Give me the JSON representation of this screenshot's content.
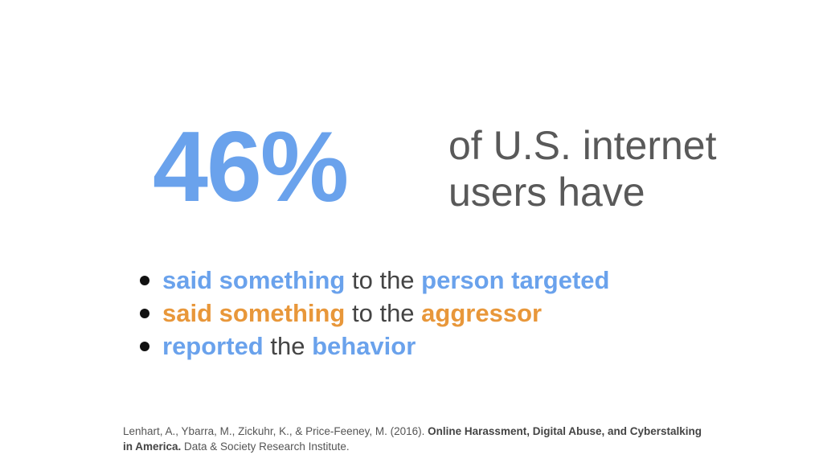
{
  "colors": {
    "blue": "#6aa2ec",
    "orange": "#e8973a",
    "gray": "#595959"
  },
  "stat": {
    "value": "46%",
    "caption_line1": "of U.S. internet",
    "caption_line2": "users have"
  },
  "bullets": [
    {
      "part1": "said something",
      "part1_color": "#6aa2ec",
      "middle": " to the ",
      "part2": "person targeted",
      "part2_color": "#6aa2ec"
    },
    {
      "part1": "said something",
      "part1_color": "#e8973a",
      "middle": " to the ",
      "part2": "aggressor",
      "part2_color": "#e8973a"
    },
    {
      "part1": "reported",
      "part1_color": "#6aa2ec",
      "middle": " the ",
      "part2": "behavior",
      "part2_color": "#6aa2ec"
    }
  ],
  "citation": {
    "authors": "Lenhart, A., Ybarra, M., Zickuhr, K., & Price-Feeney, M. (2016). ",
    "title": "Online Harassment, Digital Abuse, and Cyberstalking in America.",
    "publisher": " Data & Society Research Institute."
  }
}
